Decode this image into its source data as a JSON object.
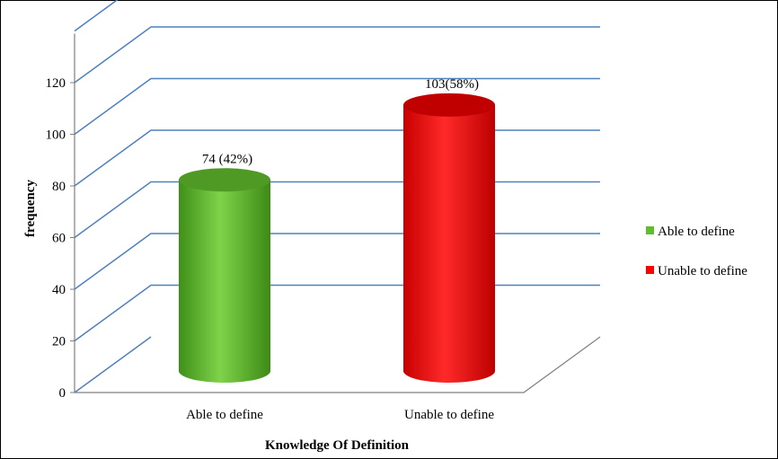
{
  "chart_data": {
    "type": "bar",
    "style": "3d-cylinder",
    "categories": [
      "Able to define",
      "Unable to define"
    ],
    "values": [
      74,
      103
    ],
    "data_labels": [
      "74 (42%)",
      "103(58%)"
    ],
    "colors": [
      "#5fbe2e",
      "#ff0000"
    ],
    "series_legend": [
      "Able to define",
      "Unable to define"
    ],
    "xlabel": "Knowledge Of Definition",
    "ylabel": "frequency",
    "ylim": [
      0,
      140
    ],
    "yticks": [
      0,
      20,
      40,
      60,
      80,
      100,
      120
    ],
    "grid": true,
    "gridline_color": "#4f81bd",
    "legend_position": "right"
  }
}
